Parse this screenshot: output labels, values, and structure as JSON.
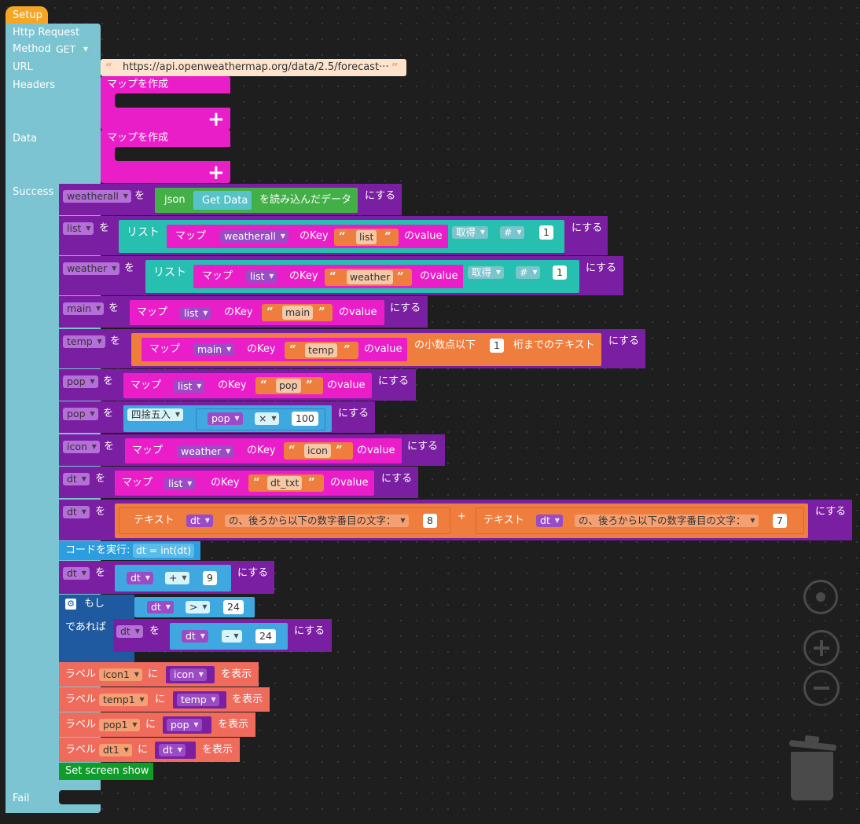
{
  "setup": {
    "label": "Setup"
  },
  "http": {
    "title": "Http Request",
    "method_label": "Method",
    "method_value": "GET",
    "url_label": "URL",
    "url_value": "https://api.openweathermap.org/data/2.5/forecast···",
    "headers_label": "Headers",
    "data_label": "Data",
    "success_label": "Success",
    "fail_label": "Fail",
    "make_map": "マップを作成",
    "plus": "+"
  },
  "words": {
    "wo": "を",
    "ni_suru": "にする",
    "map": "マップ",
    "no_key": "のKey",
    "no_value": "のvalue",
    "list_kw": "リスト",
    "get": "取得",
    "hash": "#",
    "json": "json",
    "get_data": "Get Data",
    "read_data": "を読み込んだデータ",
    "decimal_prefix": "の小数点以下",
    "decimal_suffix": "桁までのテキスト",
    "round": "四捨五入",
    "times": "×",
    "text": "テキスト",
    "from_end": "の、後ろから以下の数字番目の文字：",
    "concat_plus": "+",
    "run_code": "コードを実行:",
    "code": "dt = int(dt)",
    "plus_op": "+",
    "gt_op": ">",
    "minus_op": "-",
    "if": "もし",
    "then": "であれば",
    "label_kw": "ラベル",
    "ni": "に",
    "show": "を表示",
    "set_screen": "Set screen show"
  },
  "vars": {
    "weatherall": "weatherall",
    "list": "list",
    "weather": "weather",
    "main": "main",
    "temp": "temp",
    "pop": "pop",
    "icon": "icon",
    "dt": "dt"
  },
  "strings": {
    "list": "list",
    "weather": "weather",
    "main": "main",
    "temp": "temp",
    "pop": "pop",
    "icon": "icon",
    "dt_txt": "dt_txt"
  },
  "numbers": {
    "one": "1",
    "hundred": "100",
    "eight": "8",
    "seven": "7",
    "nine": "9",
    "twentyfour": "24"
  },
  "labels": {
    "icon1": "icon1",
    "temp1": "temp1",
    "pop1": "pop1",
    "dt1": "dt1"
  }
}
